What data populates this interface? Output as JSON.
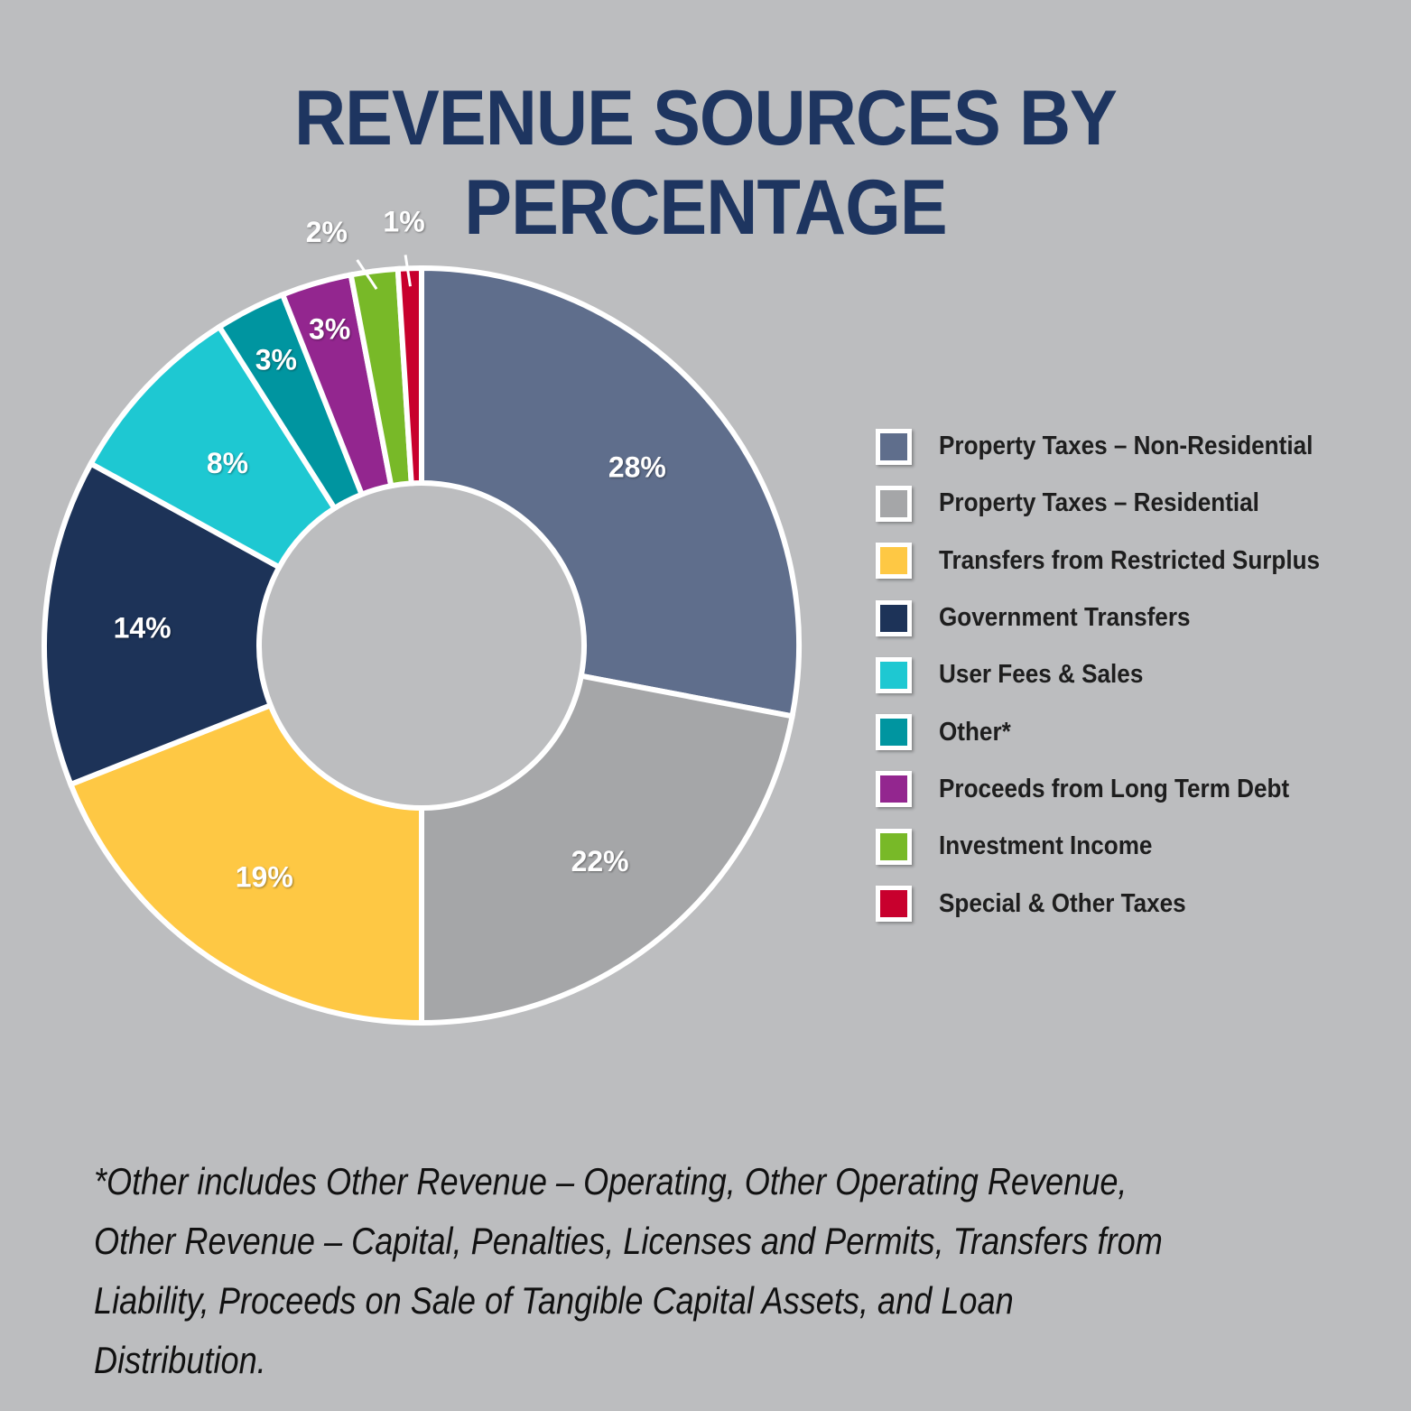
{
  "chart_data": {
    "type": "pie",
    "style": "donut",
    "title": "REVENUE SOURCES BY PERCENTAGE",
    "categories": [
      "Property Taxes – Non-Residential",
      "Property Taxes – Residential",
      "Transfers from Restricted Surplus",
      "Government Transfers",
      "User Fees & Sales",
      "Other*",
      "Proceeds from Long Term Debt",
      "Investment Income",
      "Special & Other Taxes"
    ],
    "values": [
      28,
      22,
      19,
      14,
      8,
      3,
      3,
      2,
      1
    ],
    "labels": [
      "28%",
      "22%",
      "19%",
      "14%",
      "8%",
      "3%",
      "3%",
      "2%",
      "1%"
    ],
    "colors": [
      "#5f6e8c",
      "#a5a6a8",
      "#fec844",
      "#1d3358",
      "#1ec8d2",
      "#0095a0",
      "#93268f",
      "#78b928",
      "#c8002d"
    ],
    "legend_position": "right"
  },
  "footnote": "*Other includes Other Revenue – Operating, Other Operating Revenue, Other Revenue – Capital, Penalties, Licenses and Permits, Transfers from Liability, Proceeds on Sale of Tangible Capital Assets, and Loan Distribution."
}
